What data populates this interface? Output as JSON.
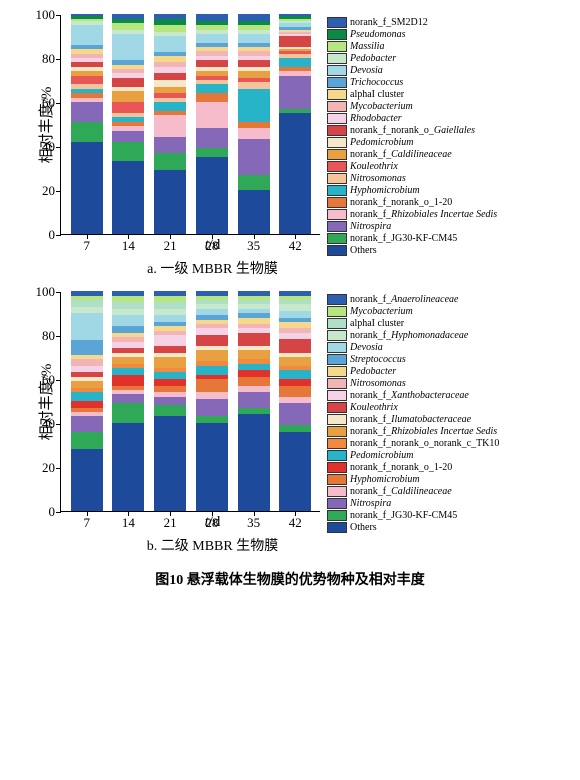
{
  "figure_title": "图10 悬浮载体生物膜的优势物种及相对丰度",
  "yaxis_label": "相对丰度/%",
  "xaxis_label_var": "t",
  "xaxis_label_unit": "/d",
  "yticks": [
    0,
    20,
    40,
    60,
    80,
    100
  ],
  "xticks": [
    "7",
    "14",
    "21",
    "28",
    "35",
    "42"
  ],
  "chartA": {
    "subtitle": "a. 一级 MBBR 生物膜",
    "legend": [
      {
        "c": "#2d5fb0",
        "n": "norank_f_SM2D12"
      },
      {
        "c": "#0a8a44",
        "n": "<i>Pseudomonas</i>"
      },
      {
        "c": "#b6e67f",
        "n": "<i>Massilia</i>"
      },
      {
        "c": "#c8e8cc",
        "n": "<i>Pedobacter</i>"
      },
      {
        "c": "#a0d8e6",
        "n": "<i>Devosia</i>"
      },
      {
        "c": "#5aa5d6",
        "n": "<i>Trichococcus</i>"
      },
      {
        "c": "#f6d88a",
        "n": "alphaI cluster"
      },
      {
        "c": "#f2b4b4",
        "n": "<i>Mycobacterium</i>"
      },
      {
        "c": "#f6d2e6",
        "n": "<i>Rhodobacter</i>"
      },
      {
        "c": "#d64545",
        "n": "norank_f_norank_o_<i>Gaiellales</i>"
      },
      {
        "c": "#f4e8c8",
        "n": "<i>Pedomicrobium</i>"
      },
      {
        "c": "#e8a040",
        "n": "norank_f_<i>Caldilineaceae</i>"
      },
      {
        "c": "#e85656",
        "n": "<i>Kouleothrix</i>"
      },
      {
        "c": "#f5c49a",
        "n": "<i>Nitrosomonas</i>"
      },
      {
        "c": "#28b4c8",
        "n": "<i>Hyphomicrobium</i>"
      },
      {
        "c": "#e57838",
        "n": "norank_f_norank_o_1-20"
      },
      {
        "c": "#f7bccc",
        "n": "norank_f_<i>Rhizobiales Incertae Sedis</i>"
      },
      {
        "c": "#8668b8",
        "n": "<i>Nitrospira</i>"
      },
      {
        "c": "#2fa858",
        "n": "norank_f_JG30-KF-CM45"
      },
      {
        "c": "#1e4a9c",
        "n": "Others"
      }
    ],
    "bars": [
      {
        "x": "7",
        "segs": [
          [
            "#1e4a9c",
            42
          ],
          [
            "#2fa858",
            9
          ],
          [
            "#8668b8",
            9
          ],
          [
            "#f7bccc",
            2
          ],
          [
            "#e57838",
            2
          ],
          [
            "#28b4c8",
            2
          ],
          [
            "#f5c49a",
            2
          ],
          [
            "#e85656",
            4
          ],
          [
            "#e8a040",
            2
          ],
          [
            "#f4e8c8",
            2
          ],
          [
            "#d64545",
            2
          ],
          [
            "#f6d2e6",
            2
          ],
          [
            "#f2b4b4",
            2
          ],
          [
            "#f6d88a",
            2
          ],
          [
            "#5aa5d6",
            2
          ],
          [
            "#a0d8e6",
            9
          ],
          [
            "#c8e8cc",
            2
          ],
          [
            "#b6e67f",
            1
          ],
          [
            "#0a8a44",
            1
          ],
          [
            "#2d5fb0",
            1
          ]
        ]
      },
      {
        "x": "14",
        "segs": [
          [
            "#1e4a9c",
            33
          ],
          [
            "#2fa858",
            9
          ],
          [
            "#8668b8",
            5
          ],
          [
            "#f7bccc",
            2
          ],
          [
            "#e57838",
            2
          ],
          [
            "#28b4c8",
            2
          ],
          [
            "#f5c49a",
            2
          ],
          [
            "#e85656",
            5
          ],
          [
            "#e8a040",
            5
          ],
          [
            "#f4e8c8",
            2
          ],
          [
            "#d64545",
            4
          ],
          [
            "#f6d2e6",
            2
          ],
          [
            "#f2b4b4",
            2
          ],
          [
            "#f6d88a",
            2
          ],
          [
            "#5aa5d6",
            2
          ],
          [
            "#a0d8e6",
            12
          ],
          [
            "#c8e8cc",
            2
          ],
          [
            "#b6e67f",
            3
          ],
          [
            "#0a8a44",
            2
          ],
          [
            "#2d5fb0",
            2
          ]
        ]
      },
      {
        "x": "21",
        "segs": [
          [
            "#1e4a9c",
            29
          ],
          [
            "#2fa858",
            8
          ],
          [
            "#8668b8",
            7
          ],
          [
            "#f7bccc",
            10
          ],
          [
            "#e57838",
            2
          ],
          [
            "#28b4c8",
            4
          ],
          [
            "#f5c49a",
            2
          ],
          [
            "#e85656",
            2
          ],
          [
            "#e8a040",
            3
          ],
          [
            "#f4e8c8",
            3
          ],
          [
            "#d64545",
            3
          ],
          [
            "#f6d2e6",
            3
          ],
          [
            "#f2b4b4",
            2
          ],
          [
            "#f6d88a",
            3
          ],
          [
            "#5aa5d6",
            2
          ],
          [
            "#a0d8e6",
            7
          ],
          [
            "#c8e8cc",
            2
          ],
          [
            "#b6e67f",
            3
          ],
          [
            "#0a8a44",
            3
          ],
          [
            "#2d5fb0",
            2
          ]
        ]
      },
      {
        "x": "28",
        "segs": [
          [
            "#1e4a9c",
            35
          ],
          [
            "#2fa858",
            4
          ],
          [
            "#8668b8",
            9
          ],
          [
            "#f7bccc",
            12
          ],
          [
            "#e57838",
            4
          ],
          [
            "#28b4c8",
            4
          ],
          [
            "#f5c49a",
            2
          ],
          [
            "#e85656",
            2
          ],
          [
            "#e8a040",
            2
          ],
          [
            "#f4e8c8",
            2
          ],
          [
            "#d64545",
            3
          ],
          [
            "#f6d2e6",
            2
          ],
          [
            "#f2b4b4",
            2
          ],
          [
            "#f6d88a",
            2
          ],
          [
            "#5aa5d6",
            2
          ],
          [
            "#a0d8e6",
            4
          ],
          [
            "#c8e8cc",
            2
          ],
          [
            "#b6e67f",
            2
          ],
          [
            "#0a8a44",
            2
          ],
          [
            "#2d5fb0",
            3
          ]
        ]
      },
      {
        "x": "35",
        "segs": [
          [
            "#1e4a9c",
            20
          ],
          [
            "#2fa858",
            7
          ],
          [
            "#8668b8",
            16
          ],
          [
            "#f7bccc",
            5
          ],
          [
            "#e57838",
            3
          ],
          [
            "#28b4c8",
            15
          ],
          [
            "#f5c49a",
            3
          ],
          [
            "#e85656",
            2
          ],
          [
            "#e8a040",
            3
          ],
          [
            "#f4e8c8",
            2
          ],
          [
            "#d64545",
            3
          ],
          [
            "#f6d2e6",
            2
          ],
          [
            "#f2b4b4",
            2
          ],
          [
            "#f6d88a",
            2
          ],
          [
            "#5aa5d6",
            2
          ],
          [
            "#a0d8e6",
            4
          ],
          [
            "#c8e8cc",
            2
          ],
          [
            "#b6e67f",
            2
          ],
          [
            "#0a8a44",
            2
          ],
          [
            "#2d5fb0",
            3
          ]
        ]
      },
      {
        "x": "42",
        "segs": [
          [
            "#1e4a9c",
            55
          ],
          [
            "#2fa858",
            2
          ],
          [
            "#8668b8",
            15
          ],
          [
            "#f7bccc",
            2
          ],
          [
            "#e57838",
            2
          ],
          [
            "#28b4c8",
            4
          ],
          [
            "#f5c49a",
            2
          ],
          [
            "#e85656",
            1
          ],
          [
            "#e8a040",
            1
          ],
          [
            "#f4e8c8",
            1
          ],
          [
            "#d64545",
            5
          ],
          [
            "#f6d2e6",
            1
          ],
          [
            "#f2b4b4",
            1
          ],
          [
            "#f6d88a",
            1
          ],
          [
            "#5aa5d6",
            1
          ],
          [
            "#a0d8e6",
            2
          ],
          [
            "#c8e8cc",
            1
          ],
          [
            "#b6e67f",
            1
          ],
          [
            "#0a8a44",
            1
          ],
          [
            "#2d5fb0",
            1
          ]
        ]
      }
    ]
  },
  "chartB": {
    "subtitle": "b. 二级 MBBR 生物膜",
    "legend": [
      {
        "c": "#2d5fb0",
        "n": "norank_f_<i>Anaerolineaceae</i>"
      },
      {
        "c": "#b6e67f",
        "n": "<i>Mycobacterium</i>"
      },
      {
        "c": "#afe0c7",
        "n": "alphaI cluster"
      },
      {
        "c": "#c8e8cc",
        "n": "norank_f_<i>Hyphomonadaceae</i>"
      },
      {
        "c": "#a0d8e6",
        "n": "<i>Devosia</i>"
      },
      {
        "c": "#5aa5d6",
        "n": "<i>Streptococcus</i>"
      },
      {
        "c": "#f6d88a",
        "n": "<i>Pedobacter</i>"
      },
      {
        "c": "#f2b4b4",
        "n": "<i>Nitrosomonas</i>"
      },
      {
        "c": "#f6d2e6",
        "n": "norank_f_<i>Xanthobacteraceae</i>"
      },
      {
        "c": "#d64545",
        "n": "<i>Kouleothrix</i>"
      },
      {
        "c": "#f4e8c8",
        "n": "norank_f_<i>Ilumatobacteraceae</i>"
      },
      {
        "c": "#e8a040",
        "n": "norank_f_<i>Rhizobiales Incertae Sedis</i>"
      },
      {
        "c": "#f08a40",
        "n": "norank_f_norank_o_norank_c_TK10"
      },
      {
        "c": "#28b4c8",
        "n": "<i>Pedomicrobium</i>"
      },
      {
        "c": "#e2302a",
        "n": "norank_f_norank_o_1-20"
      },
      {
        "c": "#e57838",
        "n": "<i>Hyphomicrobium</i>"
      },
      {
        "c": "#f7bccc",
        "n": "norank_f_<i>Caldilineaceae</i>"
      },
      {
        "c": "#8668b8",
        "n": "<i>Nitrospira</i>"
      },
      {
        "c": "#2fa858",
        "n": "norank_f_JG30-KF-CM45"
      },
      {
        "c": "#1e4a9c",
        "n": "Others"
      }
    ],
    "bars": [
      {
        "x": "7",
        "segs": [
          [
            "#1e4a9c",
            28
          ],
          [
            "#2fa858",
            8
          ],
          [
            "#8668b8",
            7
          ],
          [
            "#f7bccc",
            2
          ],
          [
            "#e57838",
            2
          ],
          [
            "#e2302a",
            3
          ],
          [
            "#28b4c8",
            4
          ],
          [
            "#f08a40",
            2
          ],
          [
            "#e8a040",
            3
          ],
          [
            "#f4e8c8",
            2
          ],
          [
            "#d64545",
            2
          ],
          [
            "#f6d2e6",
            3
          ],
          [
            "#f2b4b4",
            3
          ],
          [
            "#f6d88a",
            2
          ],
          [
            "#5aa5d6",
            7
          ],
          [
            "#a0d8e6",
            12
          ],
          [
            "#c8e8cc",
            3
          ],
          [
            "#afe0c7",
            3
          ],
          [
            "#b6e67f",
            2
          ],
          [
            "#2d5fb0",
            2
          ]
        ]
      },
      {
        "x": "14",
        "segs": [
          [
            "#1e4a9c",
            40
          ],
          [
            "#2fa858",
            9
          ],
          [
            "#8668b8",
            4
          ],
          [
            "#f7bccc",
            2
          ],
          [
            "#e57838",
            2
          ],
          [
            "#e2302a",
            5
          ],
          [
            "#28b4c8",
            3
          ],
          [
            "#f08a40",
            2
          ],
          [
            "#e8a040",
            3
          ],
          [
            "#f4e8c8",
            2
          ],
          [
            "#d64545",
            2
          ],
          [
            "#f6d2e6",
            3
          ],
          [
            "#f2b4b4",
            2
          ],
          [
            "#f6d88a",
            2
          ],
          [
            "#5aa5d6",
            3
          ],
          [
            "#a0d8e6",
            5
          ],
          [
            "#c8e8cc",
            3
          ],
          [
            "#afe0c7",
            3
          ],
          [
            "#b6e67f",
            3
          ],
          [
            "#2d5fb0",
            2
          ]
        ]
      },
      {
        "x": "21",
        "segs": [
          [
            "#1e4a9c",
            43
          ],
          [
            "#2fa858",
            5
          ],
          [
            "#8668b8",
            4
          ],
          [
            "#f7bccc",
            2
          ],
          [
            "#e57838",
            3
          ],
          [
            "#e2302a",
            3
          ],
          [
            "#28b4c8",
            3
          ],
          [
            "#f08a40",
            2
          ],
          [
            "#e8a040",
            5
          ],
          [
            "#f4e8c8",
            2
          ],
          [
            "#d64545",
            3
          ],
          [
            "#f6d2e6",
            5
          ],
          [
            "#f2b4b4",
            2
          ],
          [
            "#f6d88a",
            2
          ],
          [
            "#5aa5d6",
            2
          ],
          [
            "#a0d8e6",
            3
          ],
          [
            "#c8e8cc",
            3
          ],
          [
            "#afe0c7",
            3
          ],
          [
            "#b6e67f",
            3
          ],
          [
            "#2d5fb0",
            2
          ]
        ]
      },
      {
        "x": "28",
        "segs": [
          [
            "#1e4a9c",
            40
          ],
          [
            "#2fa858",
            3
          ],
          [
            "#8668b8",
            8
          ],
          [
            "#f7bccc",
            3
          ],
          [
            "#e57838",
            6
          ],
          [
            "#e2302a",
            2
          ],
          [
            "#28b4c8",
            4
          ],
          [
            "#f08a40",
            2
          ],
          [
            "#e8a040",
            5
          ],
          [
            "#f4e8c8",
            2
          ],
          [
            "#d64545",
            5
          ],
          [
            "#f6d2e6",
            3
          ],
          [
            "#f2b4b4",
            2
          ],
          [
            "#f6d88a",
            2
          ],
          [
            "#5aa5d6",
            2
          ],
          [
            "#a0d8e6",
            3
          ],
          [
            "#c8e8cc",
            2
          ],
          [
            "#afe0c7",
            2
          ],
          [
            "#b6e67f",
            2
          ],
          [
            "#2d5fb0",
            2
          ]
        ]
      },
      {
        "x": "35",
        "segs": [
          [
            "#1e4a9c",
            44
          ],
          [
            "#2fa858",
            3
          ],
          [
            "#8668b8",
            7
          ],
          [
            "#f7bccc",
            3
          ],
          [
            "#e57838",
            4
          ],
          [
            "#e2302a",
            3
          ],
          [
            "#28b4c8",
            3
          ],
          [
            "#f08a40",
            2
          ],
          [
            "#e8a040",
            4
          ],
          [
            "#f4e8c8",
            2
          ],
          [
            "#d64545",
            6
          ],
          [
            "#f6d2e6",
            2
          ],
          [
            "#f2b4b4",
            2
          ],
          [
            "#f6d88a",
            3
          ],
          [
            "#5aa5d6",
            2
          ],
          [
            "#a0d8e6",
            2
          ],
          [
            "#c8e8cc",
            2
          ],
          [
            "#afe0c7",
            2
          ],
          [
            "#b6e67f",
            2
          ],
          [
            "#2d5fb0",
            2
          ]
        ]
      },
      {
        "x": "42",
        "segs": [
          [
            "#1e4a9c",
            36
          ],
          [
            "#2fa858",
            3
          ],
          [
            "#8668b8",
            10
          ],
          [
            "#f7bccc",
            3
          ],
          [
            "#e57838",
            5
          ],
          [
            "#e2302a",
            3
          ],
          [
            "#28b4c8",
            4
          ],
          [
            "#f08a40",
            2
          ],
          [
            "#e8a040",
            4
          ],
          [
            "#f4e8c8",
            2
          ],
          [
            "#d64545",
            6
          ],
          [
            "#f6d2e6",
            3
          ],
          [
            "#f2b4b4",
            2
          ],
          [
            "#f6d88a",
            3
          ],
          [
            "#5aa5d6",
            2
          ],
          [
            "#a0d8e6",
            3
          ],
          [
            "#c8e8cc",
            3
          ],
          [
            "#afe0c7",
            2
          ],
          [
            "#b6e67f",
            2
          ],
          [
            "#2d5fb0",
            2
          ]
        ]
      }
    ]
  }
}
